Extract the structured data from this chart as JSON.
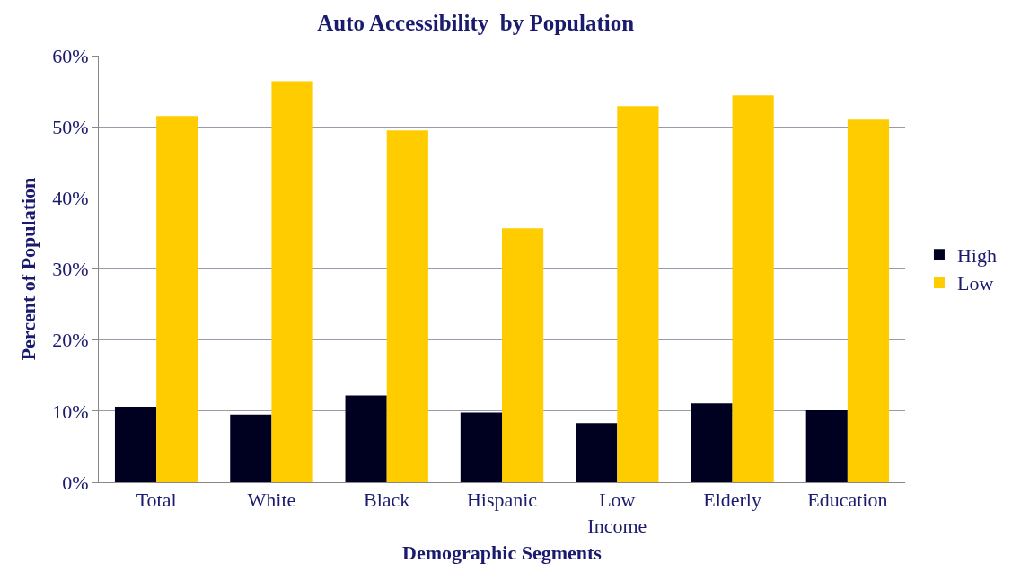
{
  "chart_data": {
    "type": "bar",
    "title": "Auto Accessibility  by Population",
    "xlabel": "Demographic Segments",
    "ylabel": "Percent of Population",
    "categories": [
      "Total",
      "White",
      "Black",
      "Hispanic",
      "Low Income",
      "Elderly",
      "Education"
    ],
    "series": [
      {
        "name": "High",
        "color": "#000020",
        "values": [
          10.6,
          9.5,
          12.2,
          9.8,
          8.3,
          11.1,
          10.1
        ]
      },
      {
        "name": "Low",
        "color": "#ffcc00",
        "values": [
          51.5,
          56.4,
          49.5,
          35.7,
          52.9,
          54.4,
          51.0
        ]
      }
    ],
    "ylim": [
      0,
      60
    ],
    "yticks": [
      {
        "value": 0,
        "label": "0%"
      },
      {
        "value": 10,
        "label": "10%"
      },
      {
        "value": 20,
        "label": "20%"
      },
      {
        "value": 30,
        "label": "30%"
      },
      {
        "value": 40,
        "label": "40%"
      },
      {
        "value": 50,
        "label": "50%"
      },
      {
        "value": 60,
        "label": "60%"
      }
    ],
    "grid": "y",
    "legend": "right"
  }
}
